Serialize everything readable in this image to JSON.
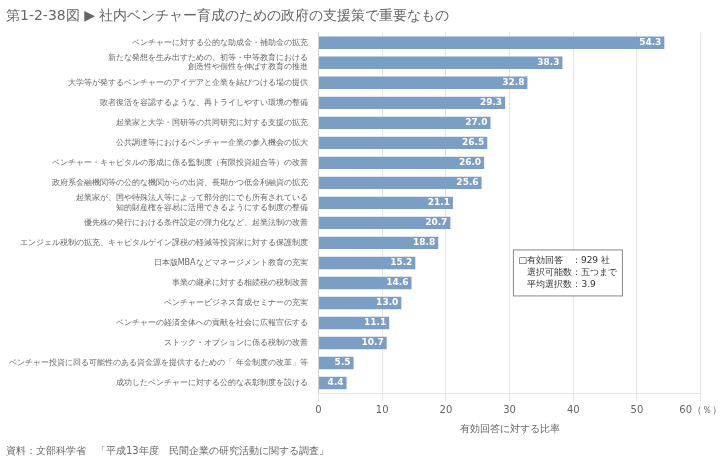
{
  "chart_data": {
    "type": "bar",
    "orientation": "horizontal",
    "title": "第1-2-38図 ▶ 社内ベンチャー育成のための政府の支援策で重要なもの",
    "subtitle": "資料：文部科学省　「平成13年度　民間企業の研究活動に関する調査」",
    "categories": [
      "ベンチャーに対する公的な助成金・補助金の拡充",
      "新たな発想を生み出すための、初等・中等教育における\n創造性や個性を伸ばす教育の推進",
      "大学等が発するベンチャーのアイデアと企業を結びつける場の提供",
      "敗者復活を容認するような、再トライしやすい環境の整備",
      "起業家と大学・国研等の共同研究に対する支援の拡充",
      "公共調達等におけるベンチャー企業の参入機会の拡大",
      "ベンチャー・キャピタルの形成に係る監制度（有限投資組合等）の改善",
      "政府系金融機関等の公的な機関からの出資、長期かつ低金利融資の拡充",
      "起業家が、国や特殊法人等によって部分的にでも所有されている\n知的財産権を容易に活用できるようにする制度の整備",
      "優先株の発行における条件設定の弾力化など、起業法制の改善",
      "エンジェル税制の拡充、キャピタルゲイン課税の軽減等投資家に対する保護制度",
      "日本版MBAなどマネージメント教育の充実",
      "事業の継承に対する相続税の税制改善",
      "ベンチャービジネス育成セミナーの充実",
      "ベンチャーの経済全体への貢献を社会に広報宣伝する",
      "ストック・オプションに係る税制の改善",
      "ベンチャー投資に回る可能性のある資金源を提供するための「 年金制度の改革」等",
      "成功したベンチャーに対する公的な表彰制度を設ける"
    ],
    "values": [
      54.3,
      38.3,
      32.8,
      29.3,
      27.0,
      26.5,
      26.0,
      25.6,
      21.1,
      20.7,
      18.8,
      15.2,
      14.6,
      13.0,
      11.1,
      10.7,
      5.5,
      4.4
    ],
    "value_labels": [
      "54.3",
      "38.3",
      "32.8",
      "29.3",
      "27.0",
      "26.5",
      "26.0",
      "25.6",
      "21.1",
      "20.7",
      "18.8",
      "15.2",
      "14.6",
      "13.0",
      "11.1",
      "10.7",
      "5.5",
      "4.4"
    ],
    "data_labels": true,
    "color": "#7B9EC4",
    "xlabel": "有効回答に対する比率",
    "xlim": [
      0,
      60
    ],
    "xticks": [
      0,
      10,
      20,
      30,
      40,
      50,
      {
        "value": 60,
        "label": "60（％）"
      }
    ],
    "grid": true,
    "annotations": [
      "□有効回答　：929 社\n　選択可能数：五つまで\n　平均選択数：3.9"
    ]
  }
}
